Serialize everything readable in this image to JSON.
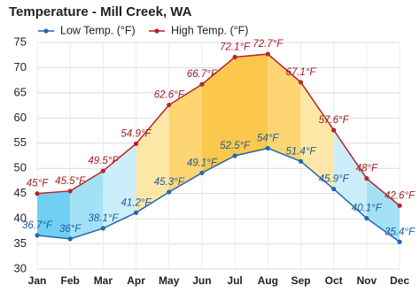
{
  "chart_data": {
    "type": "line",
    "title": "Temperature - Mill Creek, WA",
    "categories": [
      "Jan",
      "Feb",
      "Mar",
      "Apr",
      "May",
      "Jun",
      "Jul",
      "Aug",
      "Sep",
      "Oct",
      "Nov",
      "Dec"
    ],
    "series": [
      {
        "name": "Low Temp. (°F)",
        "color": "#2466b0",
        "values": [
          36.7,
          36,
          38.1,
          41.2,
          45.3,
          49.1,
          52.5,
          54,
          51.4,
          45.9,
          40.1,
          35.4
        ],
        "value_labels": [
          "36.7°F",
          "36°F",
          "38.1°F",
          "41.2°F",
          "45.3°F",
          "49.1°F",
          "52.5°F",
          "54°F",
          "51.4°F",
          "45.9°F",
          "40.1°F",
          "35.4°F"
        ]
      },
      {
        "name": "High Temp. (°F)",
        "color": "#b8232b",
        "values": [
          45,
          45.5,
          49.5,
          54.9,
          62.6,
          66.7,
          72.1,
          72.7,
          67.1,
          57.6,
          48,
          42.6
        ],
        "value_labels": [
          "45°F",
          "45.5°F",
          "49.5°F",
          "54.9°F",
          "62.6°F",
          "66.7°F",
          "72.1°F",
          "72.7°F",
          "67.1°F",
          "57.6°F",
          "48°F",
          "42.6°F"
        ]
      }
    ],
    "band_colors": [
      "#6fd0f4",
      "#a3e1f7",
      "#cbeefa",
      "#fde7a6",
      "#fdd572",
      "#fcc74d",
      "#fcc74d",
      "#fdd572",
      "#fde7a6",
      "#cbeefa",
      "#a3e1f7"
    ],
    "ylim": [
      30,
      75
    ],
    "yticks": [
      30,
      35,
      40,
      45,
      50,
      55,
      60,
      65,
      70,
      75
    ],
    "grid": true
  }
}
